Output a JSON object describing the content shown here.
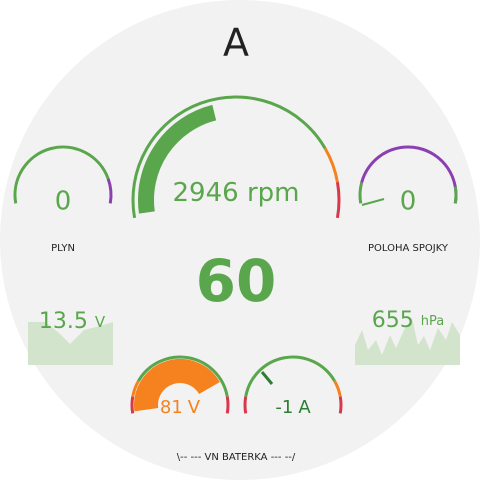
{
  "header": {
    "title": "A"
  },
  "rpm_gauge": {
    "value": 2946,
    "unit": "rpm"
  },
  "throttle": {
    "label": "PLYN",
    "value": 0
  },
  "clutch": {
    "label": "POLOHA SPOJKY",
    "value": 0
  },
  "speed": 60,
  "voltage": {
    "value": 13.5,
    "unit": "V"
  },
  "pressure": {
    "value": 655,
    "unit": "hPa"
  },
  "battery": {
    "label": "\\-- --- VN BATERKA --- --/",
    "voltage": {
      "value": 81,
      "unit": "V"
    },
    "current": {
      "value": -1,
      "unit": "A"
    }
  }
}
